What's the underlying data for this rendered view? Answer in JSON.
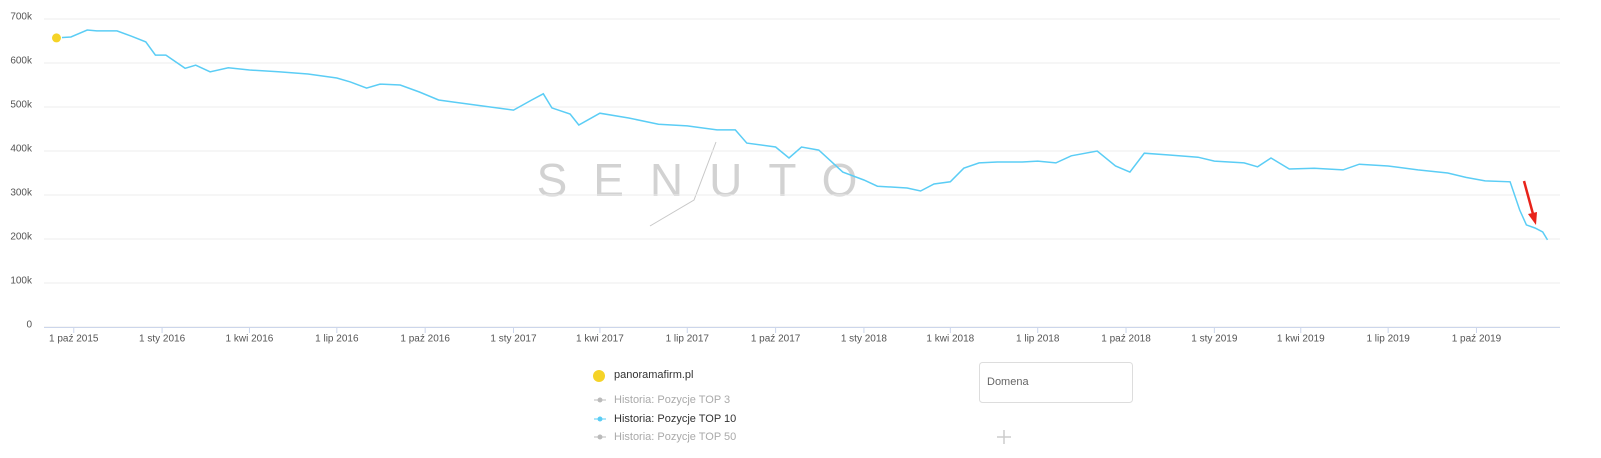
{
  "chart_data": {
    "type": "line",
    "watermark": "SENUTO",
    "x": [
      "2015-09-13",
      "2015-09-28",
      "2015-10-15",
      "2015-10-25",
      "2015-11-15",
      "2015-11-30",
      "2015-12-15",
      "2015-12-25",
      "2016-01-05",
      "2016-01-25",
      "2016-02-05",
      "2016-02-20",
      "2016-03-10",
      "2016-04-01",
      "2016-05-01",
      "2016-06-01",
      "2016-07-01",
      "2016-07-15",
      "2016-08-01",
      "2016-08-15",
      "2016-09-05",
      "2016-09-25",
      "2016-10-15",
      "2016-11-01",
      "2016-12-01",
      "2017-01-01",
      "2017-01-20",
      "2017-02-01",
      "2017-02-10",
      "2017-03-01",
      "2017-03-10",
      "2017-04-01",
      "2017-05-01",
      "2017-06-01",
      "2017-07-01",
      "2017-08-01",
      "2017-08-20",
      "2017-09-01",
      "2017-10-01",
      "2017-10-15",
      "2017-10-28",
      "2017-11-15",
      "2017-12-10",
      "2018-01-01",
      "2018-01-15",
      "2018-02-15",
      "2018-03-01",
      "2018-03-15",
      "2018-04-01",
      "2018-04-15",
      "2018-05-01",
      "2018-05-20",
      "2018-06-15",
      "2018-07-01",
      "2018-07-20",
      "2018-08-05",
      "2018-09-01",
      "2018-09-20",
      "2018-10-05",
      "2018-10-20",
      "2018-11-15",
      "2018-12-15",
      "2019-01-01",
      "2019-02-01",
      "2019-02-15",
      "2019-03-01",
      "2019-03-20",
      "2019-04-15",
      "2019-05-15",
      "2019-06-01",
      "2019-07-01",
      "2019-08-01",
      "2019-09-01",
      "2019-09-20",
      "2019-10-10",
      "2019-11-05",
      "2019-11-15",
      "2019-11-22",
      "2019-12-01",
      "2019-12-09",
      "2019-12-14"
    ],
    "series": [
      {
        "name": "Historia: Pozycje TOP 10",
        "color": "#5bcdf5",
        "values": [
          657000,
          659000,
          675000,
          673000,
          673000,
          661000,
          648000,
          618000,
          618000,
          588000,
          595000,
          580000,
          589000,
          584000,
          580000,
          575000,
          566000,
          557000,
          543000,
          552000,
          550000,
          534000,
          516000,
          511000,
          502000,
          493000,
          516000,
          530000,
          498000,
          484000,
          459000,
          486000,
          475000,
          461000,
          457000,
          448000,
          448000,
          418000,
          409000,
          384000,
          409000,
          402000,
          352000,
          334000,
          320000,
          316000,
          309000,
          325000,
          330000,
          361000,
          373000,
          375000,
          375000,
          377000,
          373000,
          389000,
          400000,
          366000,
          352000,
          395000,
          391000,
          386000,
          377000,
          373000,
          364000,
          384000,
          359000,
          361000,
          357000,
          370000,
          366000,
          357000,
          350000,
          340000,
          332000,
          330000,
          266000,
          232000,
          225000,
          216000,
          198000
        ]
      }
    ],
    "inactive_series": [
      "Historia: Pozycje TOP 3",
      "Historia: Pozycje TOP 50"
    ],
    "legend_title": "panoramafirm.pl",
    "xlim": [
      "2015-08-31",
      "2019-12-27"
    ],
    "xticks": [
      {
        "value": "2015-10-01",
        "label": "1 paź 2015"
      },
      {
        "value": "2016-01-01",
        "label": "1 sty 2016"
      },
      {
        "value": "2016-04-01",
        "label": "1 kwi 2016"
      },
      {
        "value": "2016-07-01",
        "label": "1 lip 2016"
      },
      {
        "value": "2016-10-01",
        "label": "1 paź 2016"
      },
      {
        "value": "2017-01-01",
        "label": "1 sty 2017"
      },
      {
        "value": "2017-04-01",
        "label": "1 kwi 2017"
      },
      {
        "value": "2017-07-01",
        "label": "1 lip 2017"
      },
      {
        "value": "2017-10-01",
        "label": "1 paź 2017"
      },
      {
        "value": "2018-01-01",
        "label": "1 sty 2018"
      },
      {
        "value": "2018-04-01",
        "label": "1 kwi 2018"
      },
      {
        "value": "2018-07-01",
        "label": "1 lip 2018"
      },
      {
        "value": "2018-10-01",
        "label": "1 paź 2018"
      },
      {
        "value": "2019-01-01",
        "label": "1 sty 2019"
      },
      {
        "value": "2019-04-01",
        "label": "1 kwi 2019"
      },
      {
        "value": "2019-07-01",
        "label": "1 lip 2019"
      },
      {
        "value": "2019-10-01",
        "label": "1 paź 2019"
      }
    ],
    "ylim": [
      0,
      700000
    ],
    "yticks": [
      0,
      {
        "value": 100000,
        "label": "100k"
      },
      {
        "value": 200000,
        "label": "200k"
      },
      {
        "value": 300000,
        "label": "300k"
      },
      {
        "value": 400000,
        "label": "400k"
      },
      {
        "value": 500000,
        "label": "500k"
      },
      {
        "value": 600000,
        "label": "600k"
      },
      {
        "value": 700000,
        "label": "700k"
      }
    ],
    "grid": true
  },
  "controls": {
    "domain_input": "Domena"
  }
}
